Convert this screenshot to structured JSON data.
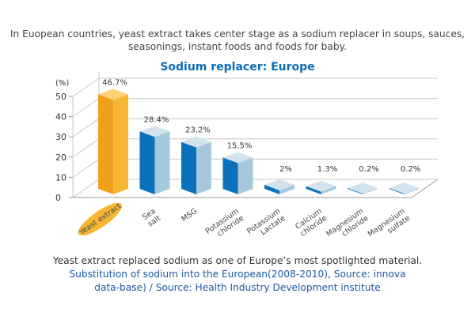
{
  "intro": "In Euopean countries, yeast extract takes center stage as a sodium replacer in soups, sauces, seasonings, instant foods and foods for baby.",
  "footer": {
    "line1": "Yeast extract replaced sodium as one of Europe’s most spotlighted material.",
    "line2": "Substitution of sodium into the European(2008-2010), Source: innova data-base) / Source: Health Industry Development institute"
  },
  "chart_data": {
    "type": "bar",
    "title": "Sodium replacer: Europe",
    "ylabel": "(%)",
    "ylim": [
      0,
      50
    ],
    "yticks": [
      "0",
      "10",
      "20",
      "30",
      "40",
      "50"
    ],
    "grid": true,
    "style": "3d",
    "categories": [
      "Yeast extract",
      "Sea salt",
      "MSG",
      "Potassium chloride",
      "Potassium Lactate",
      "Calcium chloride",
      "Magnesium chloride",
      "Magnesium sulfate"
    ],
    "values": [
      46.7,
      28.4,
      23.2,
      15.5,
      2,
      1.3,
      0.2,
      0.2
    ],
    "data_labels": [
      "46.7%",
      "28.4%",
      "23.2%",
      "15.5%",
      "2%",
      "1.3%",
      "0.2%",
      "0.2%"
    ],
    "highlight": "Yeast extract",
    "colors": {
      "highlight_left": "#f29f1c",
      "highlight_right": "#f7b733",
      "highlight_top": "#fbd077",
      "left": "#0a72bb",
      "right": "#a6c8dc",
      "top": "#d3e3ee",
      "grid": "#c8c8c8",
      "title": "#0a6cb5"
    }
  }
}
